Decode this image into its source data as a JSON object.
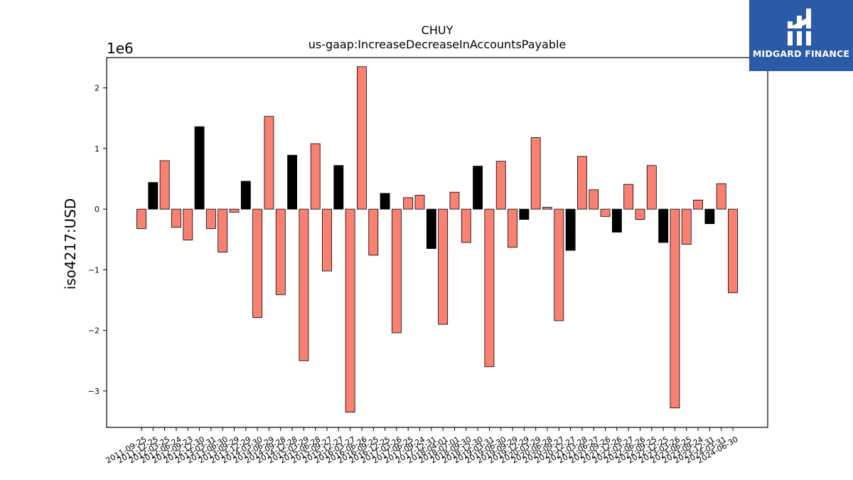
{
  "chart_data": {
    "type": "bar",
    "title": "CHUY",
    "subtitle": "us-gaap:IncreaseDecreaseInAccountsPayable",
    "ylabel": "iso4217:USD",
    "xlabel": "",
    "scale_label": "1e6",
    "ylim": [
      -3.6,
      2.5
    ],
    "yticks": [
      -3,
      -2,
      -1,
      0,
      1,
      2
    ],
    "ytick_labels": [
      "−3",
      "−2",
      "−1",
      "0",
      "1",
      "2"
    ],
    "grid": false,
    "categories": [
      "2011-09-25",
      "2011-12-25",
      "2012-03-25",
      "2012-06-24",
      "2012-09-23",
      "2012-12-30",
      "2013-03-31",
      "2013-06-30",
      "2013-09-29",
      "2013-12-29",
      "2014-03-30",
      "2014-06-29",
      "2014-09-28",
      "2014-12-28",
      "2015-03-29",
      "2015-06-28",
      "2015-09-27",
      "2015-12-27",
      "2016-03-27",
      "2016-06-26",
      "2016-09-25",
      "2016-12-25",
      "2017-03-26",
      "2017-06-25",
      "2017-09-24",
      "2017-12-31",
      "2018-04-01",
      "2018-07-01",
      "2018-09-30",
      "2018-12-30",
      "2019-03-31",
      "2019-06-30",
      "2019-09-29",
      "2019-12-29",
      "2020-03-29",
      "2020-06-28",
      "2020-09-27",
      "2020-12-27",
      "2021-03-28",
      "2021-06-27",
      "2021-09-26",
      "2021-12-26",
      "2022-03-27",
      "2022-06-26",
      "2022-09-25",
      "2022-12-25",
      "2023-03-26",
      "2023-06-25",
      "2023-09-24",
      "2023-12-31",
      "2024-03-31",
      "2024-06-30"
    ],
    "values": [
      -0.32,
      0.44,
      0.8,
      -0.3,
      -0.51,
      1.36,
      -0.32,
      -0.71,
      -0.05,
      0.46,
      -1.79,
      1.53,
      -1.41,
      0.89,
      -2.5,
      1.08,
      -1.02,
      0.72,
      -3.35,
      2.35,
      -0.76,
      0.26,
      -2.04,
      0.19,
      0.23,
      -0.65,
      -1.9,
      0.28,
      -0.55,
      0.71,
      -2.6,
      0.79,
      -0.63,
      -0.17,
      1.18,
      0.03,
      -1.84,
      -0.68,
      0.87,
      0.32,
      -0.12,
      -0.38,
      0.41,
      -0.17,
      0.72,
      -0.55,
      -3.28,
      -0.58,
      0.15,
      -0.24,
      0.42,
      -1.38
    ],
    "bar_colors": {
      "default": "#fa8072",
      "q4": "#000000"
    },
    "highlight_indices": [
      1,
      5,
      9,
      13,
      17,
      21,
      25,
      29,
      33,
      37,
      41,
      45,
      49
    ]
  },
  "logo": {
    "text": "MIDGARD FINANCE"
  }
}
